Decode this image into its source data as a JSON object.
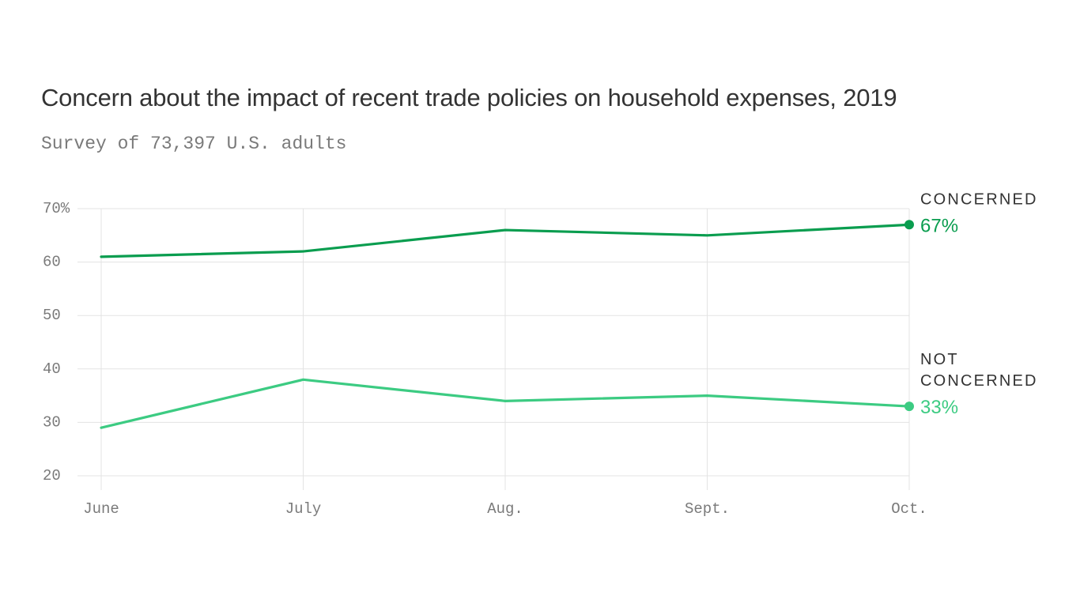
{
  "chart_data": {
    "type": "line",
    "title": "Concern about the impact of recent trade policies on household expenses, 2019",
    "subtitle": "Survey of 73,397 U.S. adults",
    "categories": [
      "June",
      "July",
      "Aug.",
      "Sept.",
      "Oct."
    ],
    "y_ticks": [
      20,
      30,
      40,
      50,
      60,
      70
    ],
    "y_tick_labels": [
      "20",
      "30",
      "40",
      "50",
      "60",
      "70%"
    ],
    "ylim": [
      20,
      70
    ],
    "grid": true,
    "series": [
      {
        "name": "CONCERNED",
        "label_lines": [
          "CONCERNED"
        ],
        "values": [
          61,
          62,
          66,
          65,
          67
        ],
        "end_label": "67%",
        "color": "#0a9d4f"
      },
      {
        "name": "NOT CONCERNED",
        "label_lines": [
          "NOT",
          "CONCERNED"
        ],
        "values": [
          29,
          38,
          34,
          35,
          33
        ],
        "end_label": "33%",
        "color": "#3ccb82"
      }
    ]
  }
}
